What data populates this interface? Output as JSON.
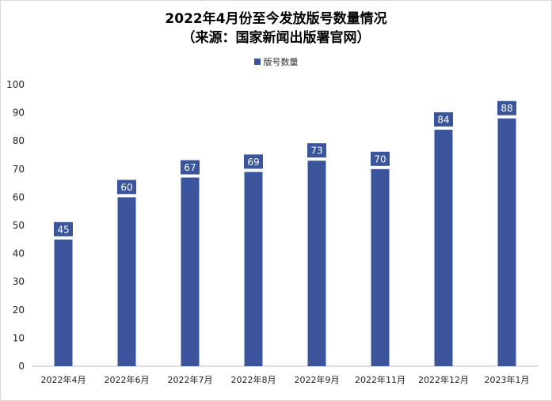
{
  "chart_data": {
    "type": "bar",
    "title": "2022年4月份至今发放版号数量情况",
    "subtitle": "（来源：国家新闻出版署官网）",
    "categories": [
      "2022年4月",
      "2022年6月",
      "2022年7月",
      "2022年8月",
      "2022年9月",
      "2022年11月",
      "2022年12月",
      "2023年1月"
    ],
    "series": [
      {
        "name": "版号数量",
        "values": [
          45,
          60,
          67,
          69,
          73,
          70,
          84,
          88
        ],
        "color": "#3a559c"
      }
    ],
    "ylim": [
      0,
      100
    ],
    "yticks": [
      0,
      10,
      20,
      30,
      40,
      50,
      60,
      70,
      80,
      90,
      100
    ],
    "legend_position": "top",
    "grid": false,
    "data_labels": true
  }
}
